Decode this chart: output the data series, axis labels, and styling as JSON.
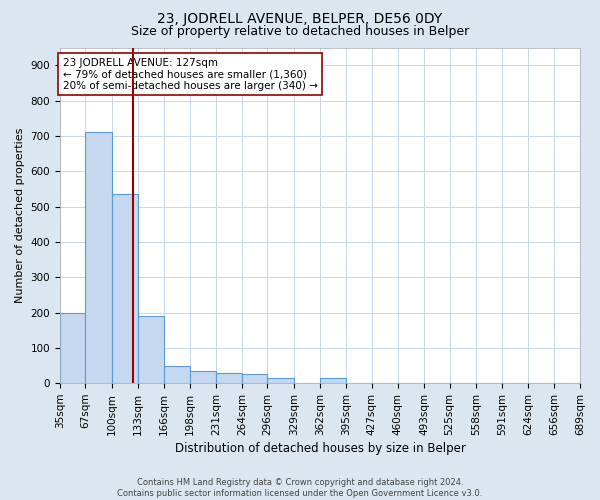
{
  "title": "23, JODRELL AVENUE, BELPER, DE56 0DY",
  "subtitle": "Size of property relative to detached houses in Belper",
  "xlabel": "Distribution of detached houses by size in Belper",
  "ylabel": "Number of detached properties",
  "bin_edges": [
    35,
    67,
    100,
    133,
    166,
    198,
    231,
    264,
    296,
    329,
    362,
    395,
    427,
    460,
    493,
    525,
    558,
    591,
    624,
    656,
    689
  ],
  "bar_heights": [
    200,
    710,
    535,
    190,
    50,
    35,
    30,
    25,
    15,
    0,
    15,
    0,
    0,
    0,
    0,
    0,
    0,
    0,
    0,
    0
  ],
  "bar_color": "#c5d8f0",
  "bar_edge_color": "#5b9bd5",
  "bar_linewidth": 0.8,
  "fig_bg_color": "#dce6f1",
  "plot_bg_color": "#ffffff",
  "grid_color": "#c8d8ea",
  "property_size": 127,
  "property_line_color": "#990000",
  "annotation_text": "23 JODRELL AVENUE: 127sqm\n← 79% of detached houses are smaller (1,360)\n20% of semi-detached houses are larger (340) →",
  "annotation_box_color": "#ffffff",
  "annotation_box_edge_color": "#990000",
  "ylim": [
    0,
    950
  ],
  "yticks": [
    0,
    100,
    200,
    300,
    400,
    500,
    600,
    700,
    800,
    900
  ],
  "footnote": "Contains HM Land Registry data © Crown copyright and database right 2024.\nContains public sector information licensed under the Open Government Licence v3.0.",
  "title_fontsize": 10,
  "subtitle_fontsize": 9,
  "xlabel_fontsize": 8.5,
  "ylabel_fontsize": 8,
  "tick_fontsize": 7.5,
  "annotation_fontsize": 7.5,
  "footnote_fontsize": 6
}
